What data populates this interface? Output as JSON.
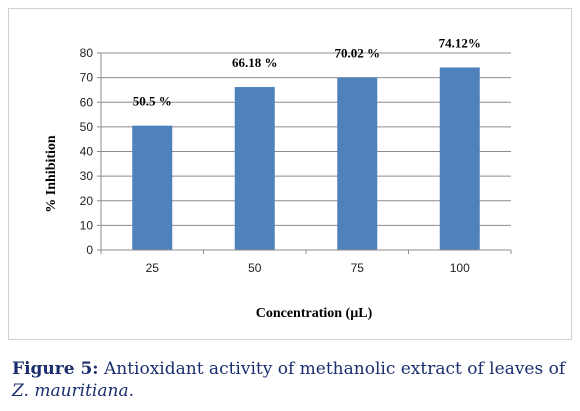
{
  "chart_data": {
    "type": "bar",
    "categories": [
      "25",
      "50",
      "75",
      "100"
    ],
    "values": [
      50.5,
      66.18,
      70.02,
      74.12
    ],
    "data_labels": [
      "50.5 %",
      "66.18 %",
      "70.02  %",
      "74.12%"
    ],
    "title": "",
    "xlabel": "Concentration  (µL)",
    "ylabel": "% Inhibition",
    "ylim": [
      0,
      80
    ],
    "yticks": [
      "0",
      "10",
      "20",
      "30",
      "40",
      "50",
      "60",
      "70",
      "80"
    ],
    "grid": true,
    "legend": "none",
    "bar_color": "#4f81bd"
  },
  "caption": {
    "lead": "Figure 5:",
    "text": " Antioxidant activity of methanolic extract of leaves of ",
    "species": "Z. mauritiana",
    "end": "."
  }
}
